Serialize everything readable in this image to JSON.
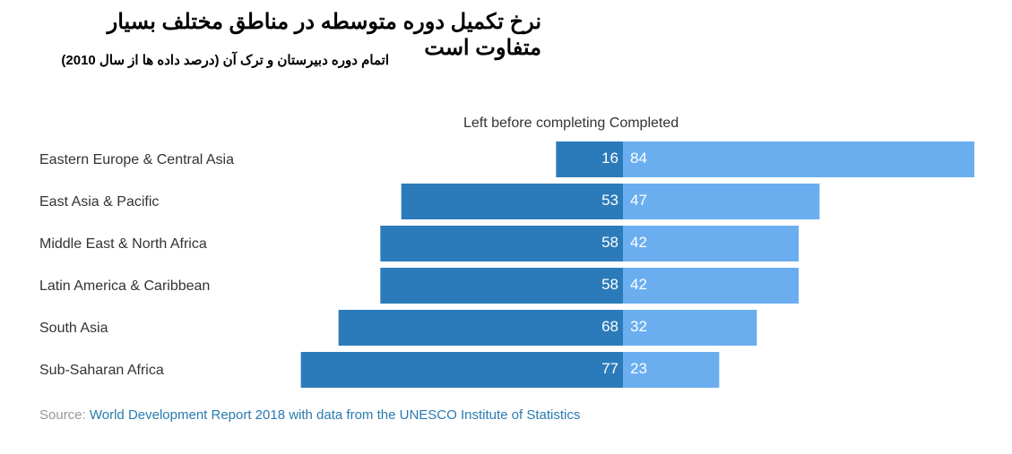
{
  "chart_data": {
    "type": "bar",
    "title": "نرخ تکمیل دوره متوسطه در مناطق مختلف بسیار متفاوت است",
    "subtitle": "اتمام دوره دبیرستان و ترک آن (درصد داده ها از سال 2010)",
    "categories": [
      "Eastern Europe & Central Asia",
      "East Asia & Pacific",
      "Middle East & North Africa",
      "Latin America & Caribbean",
      "South Asia",
      "Sub-Saharan Africa"
    ],
    "series": [
      {
        "name": "Left before completing",
        "color": "#2b7bba",
        "values": [
          16,
          53,
          58,
          58,
          68,
          77
        ]
      },
      {
        "name": "Completed",
        "color": "#6aaef0",
        "values": [
          84,
          47,
          42,
          42,
          32,
          23
        ]
      }
    ],
    "legend_text": "Left before completing Completed",
    "legend_position": "top"
  },
  "source": {
    "label": "Source:",
    "link": "World Development Report 2018 with data from the UNESCO Institute of Statistics"
  }
}
